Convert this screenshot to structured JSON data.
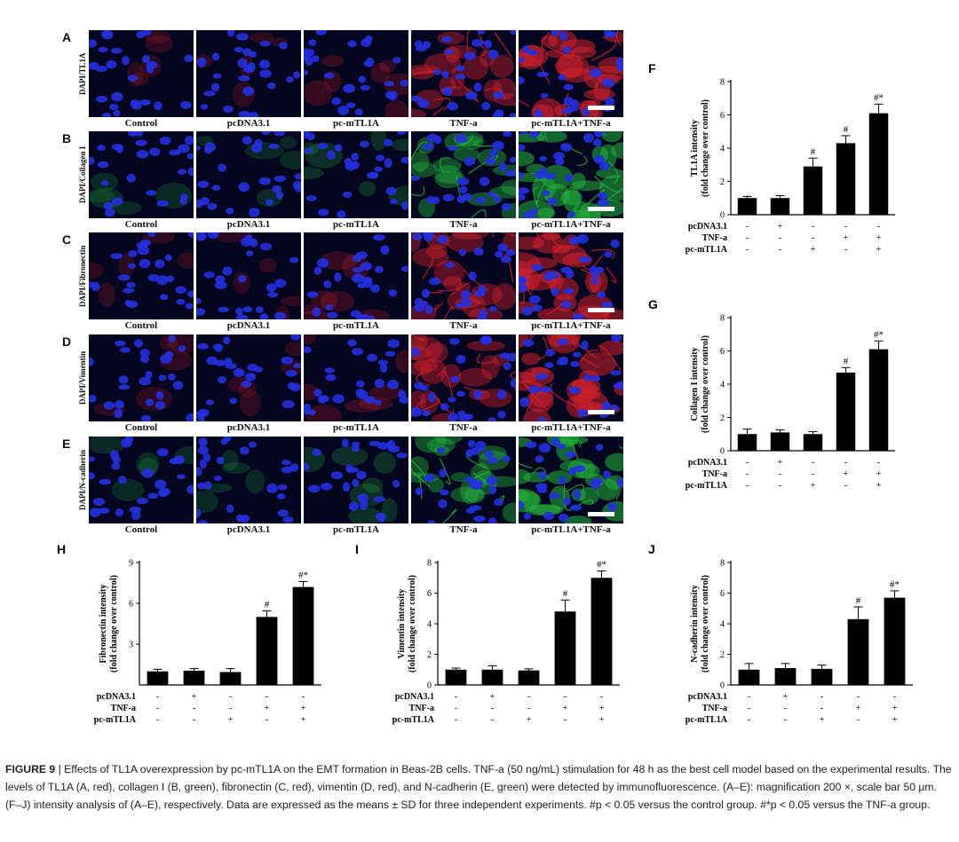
{
  "panels": {
    "letters": [
      "A",
      "B",
      "C",
      "D",
      "E"
    ],
    "row_labels": [
      "DAPI/TL1A",
      "DAPI/Collagen I",
      "DAPI/Fibronectin",
      "DAPI/Vimentin",
      "DAPI/N-cadherin"
    ],
    "columns": [
      "Control",
      "pcDNA3.1",
      "pc-mTL1A",
      "TNF-a",
      "pc-mTL1A+TNF-a"
    ],
    "stain_colors": [
      "#d0202a",
      "#22b33a",
      "#d0202a",
      "#d0202a",
      "#22b33a"
    ],
    "nucleus_color": "#2430e0"
  },
  "chart_data": [
    {
      "panel": "F",
      "type": "bar",
      "ylabel": "TL1A intensity",
      "ylabel2": "(fold change over control)",
      "ylim": [
        0,
        8
      ],
      "yticks": [
        "0",
        "2",
        "4",
        "6",
        "8"
      ],
      "values": [
        1.0,
        1.0,
        2.9,
        4.3,
        6.1
      ],
      "errors": [
        0.1,
        0.15,
        0.5,
        0.45,
        0.55
      ],
      "marks": [
        "",
        "",
        "#",
        "#",
        "#*"
      ],
      "rows": [
        {
          "label": "pcDNA3.1",
          "signs": [
            "-",
            "+",
            "-",
            "-",
            "-"
          ]
        },
        {
          "label": "TNF-a",
          "signs": [
            "-",
            "-",
            "-",
            "+",
            "+"
          ]
        },
        {
          "label": "pc-mTL1A",
          "signs": [
            "-",
            "-",
            "+",
            "-",
            "+"
          ]
        }
      ]
    },
    {
      "panel": "G",
      "type": "bar",
      "ylabel": "Collagen I intensity",
      "ylabel2": "(fold change over control)",
      "ylim": [
        0,
        8
      ],
      "yticks": [
        "0",
        "2",
        "4",
        "6",
        "8"
      ],
      "values": [
        1.0,
        1.1,
        1.0,
        4.7,
        6.1
      ],
      "errors": [
        0.3,
        0.15,
        0.15,
        0.3,
        0.5
      ],
      "marks": [
        "",
        "",
        "",
        "#",
        "#*"
      ],
      "rows": [
        {
          "label": "pcDNA3.1",
          "signs": [
            "-",
            "+",
            "-",
            "-",
            "-"
          ]
        },
        {
          "label": "TNF-a",
          "signs": [
            "-",
            "-",
            "-",
            "+",
            "+"
          ]
        },
        {
          "label": "pc-mTL1A",
          "signs": [
            "-",
            "-",
            "+",
            "-",
            "+"
          ]
        }
      ]
    },
    {
      "panel": "H",
      "type": "bar",
      "ylabel": "Fibronectin intensity",
      "ylabel2": "(fold change over control)",
      "ylim": [
        0,
        9
      ],
      "yticks": [
        "3",
        "6",
        "9"
      ],
      "values": [
        1.0,
        1.05,
        0.95,
        5.0,
        7.2
      ],
      "errors": [
        0.15,
        0.15,
        0.25,
        0.45,
        0.4
      ],
      "marks": [
        "",
        "",
        "",
        "#",
        "#*"
      ],
      "rows": [
        {
          "label": "pcDNA3.1",
          "signs": [
            "-",
            "+",
            "-",
            "-",
            "-"
          ]
        },
        {
          "label": "TNF-a",
          "signs": [
            "-",
            "-",
            "-",
            "+",
            "+"
          ]
        },
        {
          "label": "pc-mTL1A",
          "signs": [
            "-",
            "-",
            "+",
            "-",
            "+"
          ]
        }
      ]
    },
    {
      "panel": "I",
      "type": "bar",
      "ylabel": "Vimentin intensity",
      "ylabel2": "(fold change over control)",
      "ylim": [
        0,
        8
      ],
      "yticks": [
        "0",
        "2",
        "4",
        "6",
        "8"
      ],
      "values": [
        1.0,
        1.0,
        0.95,
        4.8,
        7.0
      ],
      "errors": [
        0.1,
        0.25,
        0.1,
        0.75,
        0.45
      ],
      "marks": [
        "",
        "",
        "",
        "#",
        "#*"
      ],
      "rows": [
        {
          "label": "pcDNA3.1",
          "signs": [
            "-",
            "+",
            "-",
            "-",
            "-"
          ]
        },
        {
          "label": "TNF-a",
          "signs": [
            "-",
            "-",
            "-",
            "+",
            "+"
          ]
        },
        {
          "label": "pc-mTL1A",
          "signs": [
            "-",
            "-",
            "+",
            "-",
            "+"
          ]
        }
      ]
    },
    {
      "panel": "J",
      "type": "bar",
      "ylabel": "N-cadherin intensity",
      "ylabel2": "(fold change over control)",
      "ylim": [
        0,
        8
      ],
      "yticks": [
        "0",
        "2",
        "4",
        "6",
        "8"
      ],
      "values": [
        1.0,
        1.1,
        1.05,
        4.3,
        5.7
      ],
      "errors": [
        0.4,
        0.3,
        0.25,
        0.8,
        0.45
      ],
      "marks": [
        "",
        "",
        "",
        "#",
        "#*"
      ],
      "rows": [
        {
          "label": "pcDNA3.1",
          "signs": [
            "-",
            "+",
            "-",
            "-",
            "-"
          ]
        },
        {
          "label": "TNF-a",
          "signs": [
            "-",
            "-",
            "-",
            "+",
            "+"
          ]
        },
        {
          "label": "pc-mTL1A",
          "signs": [
            "-",
            "-",
            "+",
            "-",
            "+"
          ]
        }
      ]
    }
  ],
  "caption": {
    "title": "FIGURE 9",
    "body": "| Effects of TL1A overexpression by pc-mTL1A on the EMT formation in Beas-2B cells. TNF-a (50 ng/mL) stimulation for 48 h as the best cell model based on the experimental results. The levels of TL1A (A, red), collagen I (B, green), fibronectin (C, red), vimentin (D, red), and N-cadherin (E, green) were detected by immunofluorescence. (A–E): magnification 200 ×, scale bar 50 μm. (F–J) intensity analysis of (A–E), respectively. Data are expressed as the means ± SD for three independent experiments. #p < 0.05 versus the control group. #*p < 0.05 versus the TNF-a group."
  }
}
